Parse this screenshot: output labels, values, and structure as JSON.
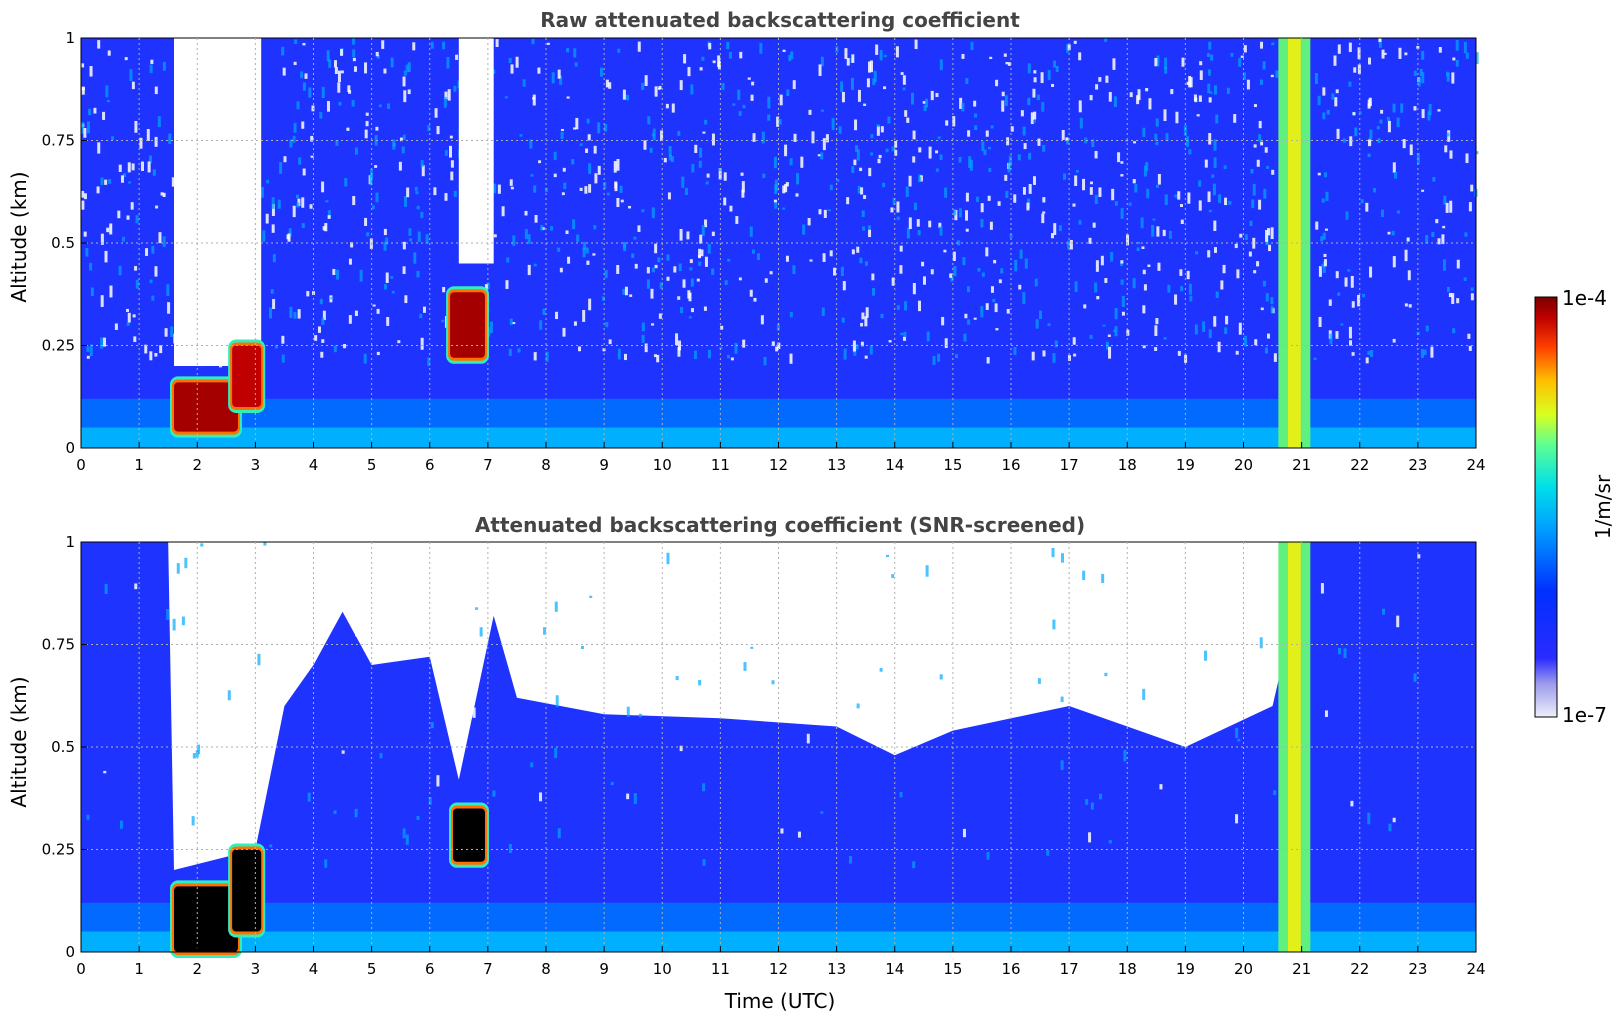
{
  "chart_data": [
    {
      "type": "heatmap",
      "title": "Raw attenuated backscattering coefficient",
      "xlabel": "",
      "ylabel": "Altitude (km)",
      "xlim": [
        0,
        24
      ],
      "ylim": [
        0,
        1
      ],
      "xticks": [
        "0",
        "1",
        "2",
        "3",
        "4",
        "5",
        "6",
        "7",
        "8",
        "9",
        "10",
        "11",
        "12",
        "13",
        "14",
        "15",
        "16",
        "17",
        "18",
        "19",
        "20",
        "21",
        "22",
        "23",
        "24"
      ],
      "yticks": [
        "0",
        "0.25",
        "0.5",
        "0.75",
        "1"
      ],
      "grid": true,
      "colorbar": {
        "label": "1/m/sr",
        "min": "1e-7",
        "max": "1e-4",
        "scale": "log",
        "colormap": "jet"
      },
      "features": [
        {
          "x": [
            1.6,
            2.7
          ],
          "y": [
            0.04,
            0.16
          ],
          "level": 0.97
        },
        {
          "x": [
            2.6,
            3.1
          ],
          "y": [
            0.1,
            0.25
          ],
          "level": 0.95
        },
        {
          "x": [
            6.35,
            6.95
          ],
          "y": [
            0.22,
            0.38
          ],
          "level": 0.97
        },
        {
          "x": [
            20.6,
            21.15
          ],
          "y": [
            0,
            1
          ],
          "level": 0.72
        }
      ],
      "clear_regions": [
        {
          "x": [
            1.6,
            3.1
          ],
          "y": [
            0.2,
            1
          ]
        },
        {
          "x": [
            6.5,
            7.1
          ],
          "y": [
            0.45,
            1
          ]
        }
      ]
    },
    {
      "type": "heatmap",
      "title": "Attenuated backscattering coefficient (SNR-screened)",
      "xlabel": "Time (UTC)",
      "ylabel": "Altitude (km)",
      "xlim": [
        0,
        24
      ],
      "ylim": [
        0,
        1
      ],
      "xticks": [
        "0",
        "1",
        "2",
        "3",
        "4",
        "5",
        "6",
        "7",
        "8",
        "9",
        "10",
        "11",
        "12",
        "13",
        "14",
        "15",
        "16",
        "17",
        "18",
        "19",
        "20",
        "21",
        "22",
        "23",
        "24"
      ],
      "yticks": [
        "0",
        "0.25",
        "0.5",
        "0.75",
        "1"
      ],
      "grid": true,
      "colorbar": {
        "label": "1/m/sr",
        "min": "1e-7",
        "max": "1e-4",
        "scale": "log",
        "colormap": "jet"
      },
      "features": [
        {
          "x": [
            1.6,
            2.7
          ],
          "y": [
            0,
            0.16
          ],
          "level": 1.0
        },
        {
          "x": [
            2.6,
            3.1
          ],
          "y": [
            0.05,
            0.25
          ],
          "level": 1.0
        },
        {
          "x": [
            6.4,
            6.95
          ],
          "y": [
            0.22,
            0.35
          ],
          "level": 1.0
        },
        {
          "x": [
            20.6,
            21.15
          ],
          "y": [
            0,
            1
          ],
          "level": 0.72
        }
      ],
      "screened_top_km": [
        {
          "x": 0,
          "y": 1
        },
        {
          "x": 1.5,
          "y": 1
        },
        {
          "x": 1.6,
          "y": 0.2
        },
        {
          "x": 3.0,
          "y": 0.25
        },
        {
          "x": 3.5,
          "y": 0.6
        },
        {
          "x": 4.0,
          "y": 0.7
        },
        {
          "x": 4.5,
          "y": 0.83
        },
        {
          "x": 5.0,
          "y": 0.7
        },
        {
          "x": 6.0,
          "y": 0.72
        },
        {
          "x": 6.5,
          "y": 0.42
        },
        {
          "x": 7.1,
          "y": 0.82
        },
        {
          "x": 7.5,
          "y": 0.62
        },
        {
          "x": 9.0,
          "y": 0.58
        },
        {
          "x": 11.0,
          "y": 0.57
        },
        {
          "x": 13.0,
          "y": 0.55
        },
        {
          "x": 14.0,
          "y": 0.48
        },
        {
          "x": 15.0,
          "y": 0.54
        },
        {
          "x": 17.0,
          "y": 0.6
        },
        {
          "x": 19.0,
          "y": 0.5
        },
        {
          "x": 20.5,
          "y": 0.6
        },
        {
          "x": 21.15,
          "y": 1
        },
        {
          "x": 24,
          "y": 1
        }
      ]
    }
  ]
}
